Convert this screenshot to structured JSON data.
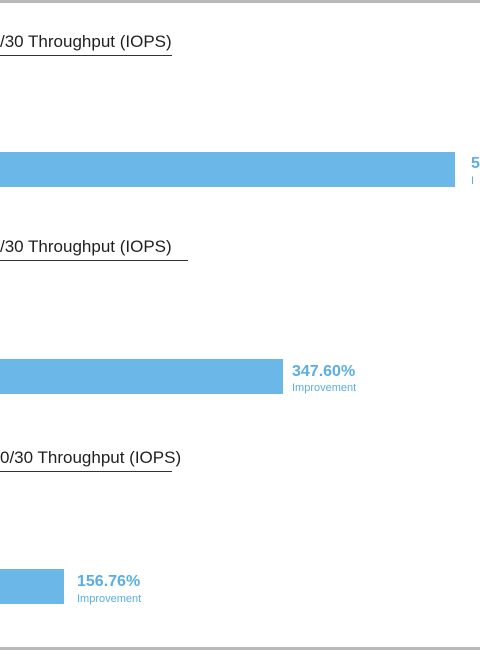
{
  "colors": {
    "bar": "#6bb8e8",
    "value_text": "#5aaee3",
    "frame": "#b9b9b9"
  },
  "chart_data": [
    {
      "type": "bar",
      "orientation": "horizontal",
      "title": "/30 Throughput (IOPS)",
      "series": [
        {
          "values": [
            5
          ],
          "value_label": "5",
          "sub_label": "I"
        }
      ]
    },
    {
      "type": "bar",
      "orientation": "horizontal",
      "title": "/30 Throughput (IOPS)",
      "series": [
        {
          "values": [
            347.6
          ],
          "value_label": "347.60%",
          "sub_label": "Improvement"
        }
      ]
    },
    {
      "type": "bar",
      "orientation": "horizontal",
      "title": "0/30 Throughput (IOPS)",
      "series": [
        {
          "values": [
            156.76
          ],
          "value_label": "156.76%",
          "sub_label": "Improvement"
        }
      ]
    }
  ]
}
